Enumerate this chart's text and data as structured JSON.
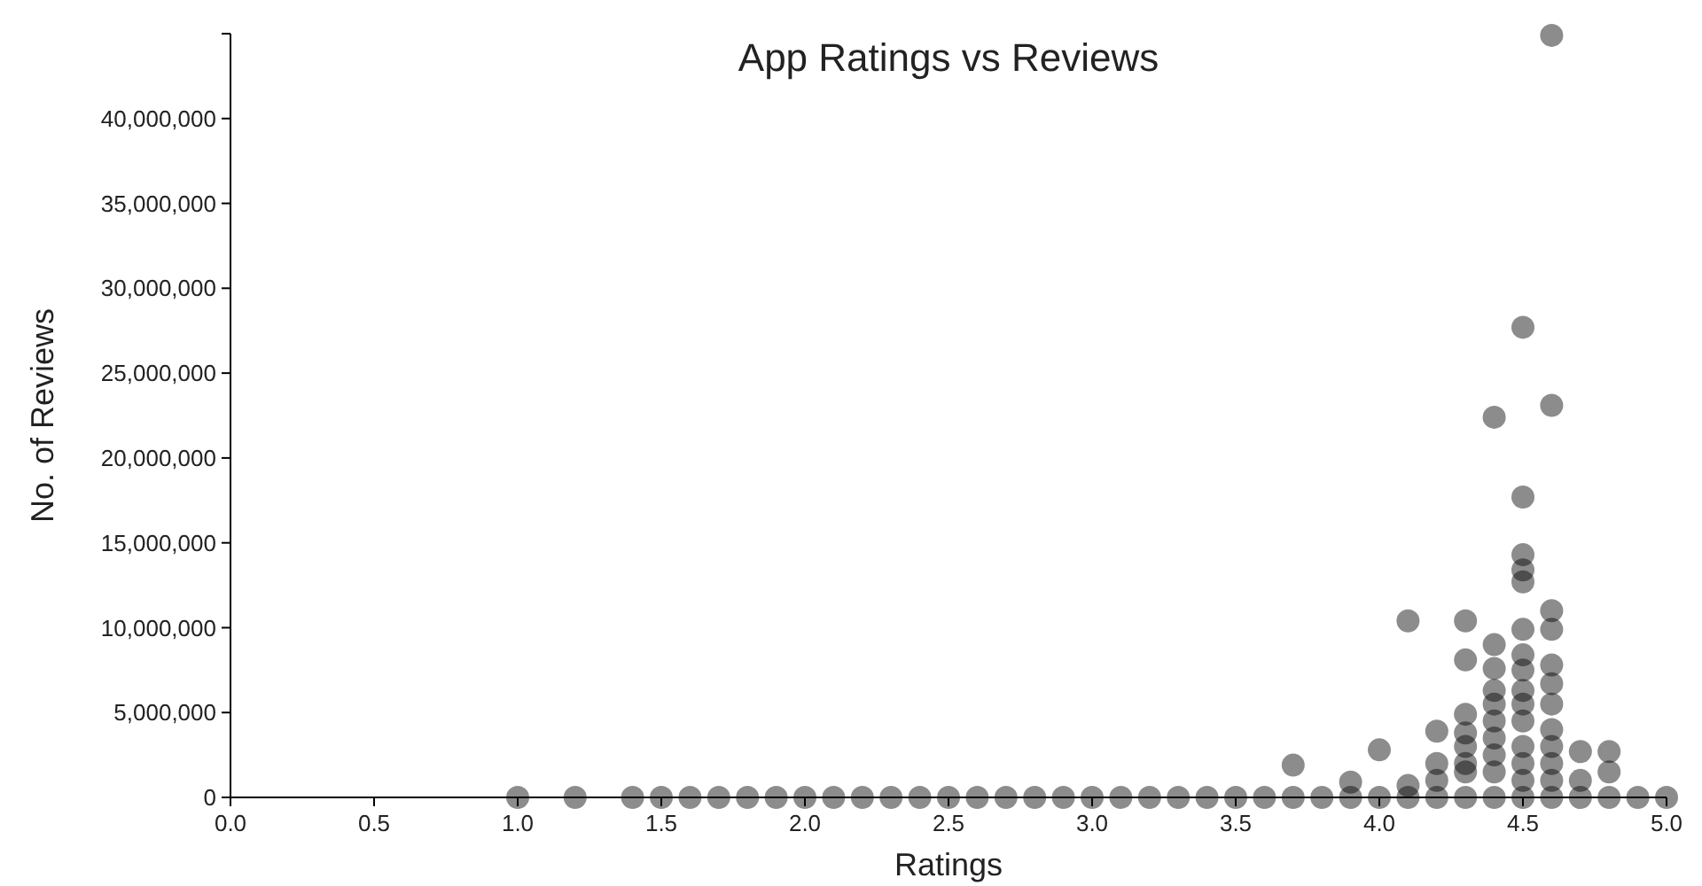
{
  "chart_data": {
    "type": "scatter",
    "title": "App Ratings vs Reviews",
    "xlabel": "Ratings",
    "ylabel": "No. of Reviews",
    "marker": "circle",
    "grid": false,
    "xlim": [
      0,
      5
    ],
    "xticks": [
      {
        "value": 0,
        "label": "0.0"
      },
      {
        "value": 0.5,
        "label": "0.5"
      },
      {
        "value": 1,
        "label": "1.0"
      },
      {
        "value": 1.5,
        "label": "1.5"
      },
      {
        "value": 2,
        "label": "2.0"
      },
      {
        "value": 2.5,
        "label": "2.5"
      },
      {
        "value": 3,
        "label": "3.0"
      },
      {
        "value": 3.5,
        "label": "3.5"
      },
      {
        "value": 4,
        "label": "4.0"
      },
      {
        "value": 4.5,
        "label": "4.5"
      },
      {
        "value": 5,
        "label": "5.0"
      }
    ],
    "ylim": [
      0,
      45000000
    ],
    "yticks": [
      {
        "value": 0,
        "label": "0"
      },
      {
        "value": 5000000,
        "label": "5,000,000"
      },
      {
        "value": 10000000,
        "label": "10,000,000"
      },
      {
        "value": 15000000,
        "label": "15,000,000"
      },
      {
        "value": 20000000,
        "label": "20,000,000"
      },
      {
        "value": 25000000,
        "label": "25,000,000"
      },
      {
        "value": 30000000,
        "label": "30,000,000"
      },
      {
        "value": 35000000,
        "label": "35,000,000"
      },
      {
        "value": 40000000,
        "label": "40,000,000"
      }
    ],
    "series": [
      {
        "color": "#000000",
        "x": [
          1.0,
          1.2,
          1.4,
          1.5,
          1.6,
          1.7,
          1.8,
          1.9,
          2.0,
          2.1,
          2.2,
          2.3,
          2.4,
          2.5,
          2.6,
          2.7,
          2.8,
          2.9,
          3.0,
          3.1,
          3.2,
          3.3,
          3.4,
          3.5,
          3.6,
          3.7,
          3.8,
          3.9,
          4.0,
          4.1,
          4.2,
          4.3,
          4.4,
          4.5,
          4.6,
          4.7,
          4.8,
          4.9,
          5.0,
          4.6,
          4.5,
          4.6,
          4.4,
          4.5,
          4.5,
          4.5,
          4.5,
          4.6,
          4.6,
          4.1,
          4.3,
          4.3,
          4.5,
          4.4,
          4.4,
          4.4,
          4.4,
          4.6,
          4.6,
          4.6,
          4.5,
          4.5,
          4.5,
          4.5,
          4.5,
          4.3,
          4.3,
          4.2,
          4.0,
          4.7,
          4.8,
          4.8,
          3.7,
          3.9,
          4.2,
          4.2,
          4.3,
          4.3,
          4.3,
          4.4,
          4.4,
          4.4,
          4.4,
          4.5,
          4.5,
          4.5,
          4.6,
          4.6,
          4.6,
          4.6,
          4.7,
          4.1
        ],
        "values": [
          0,
          0,
          0,
          0,
          0,
          0,
          0,
          0,
          0,
          0,
          0,
          0,
          0,
          0,
          0,
          0,
          0,
          0,
          0,
          0,
          0,
          0,
          0,
          0,
          0,
          0,
          0,
          0,
          0,
          0,
          0,
          0,
          0,
          0,
          0,
          0,
          0,
          0,
          0,
          44900000,
          27700000,
          23100000,
          22400000,
          17700000,
          14300000,
          13400000,
          12700000,
          11000000,
          9900000,
          10400000,
          10400000,
          8100000,
          9900000,
          9000000,
          7600000,
          6300000,
          5500000,
          7800000,
          6700000,
          5500000,
          8400000,
          7500000,
          6300000,
          5500000,
          4500000,
          4900000,
          3800000,
          3900000,
          2800000,
          2700000,
          2700000,
          1500000,
          1900000,
          900000,
          2000000,
          1000000,
          3000000,
          2000000,
          1500000,
          4500000,
          3500000,
          2500000,
          1500000,
          3000000,
          2000000,
          1000000,
          4000000,
          3000000,
          2000000,
          1000000,
          1000000,
          700000
        ]
      }
    ]
  }
}
